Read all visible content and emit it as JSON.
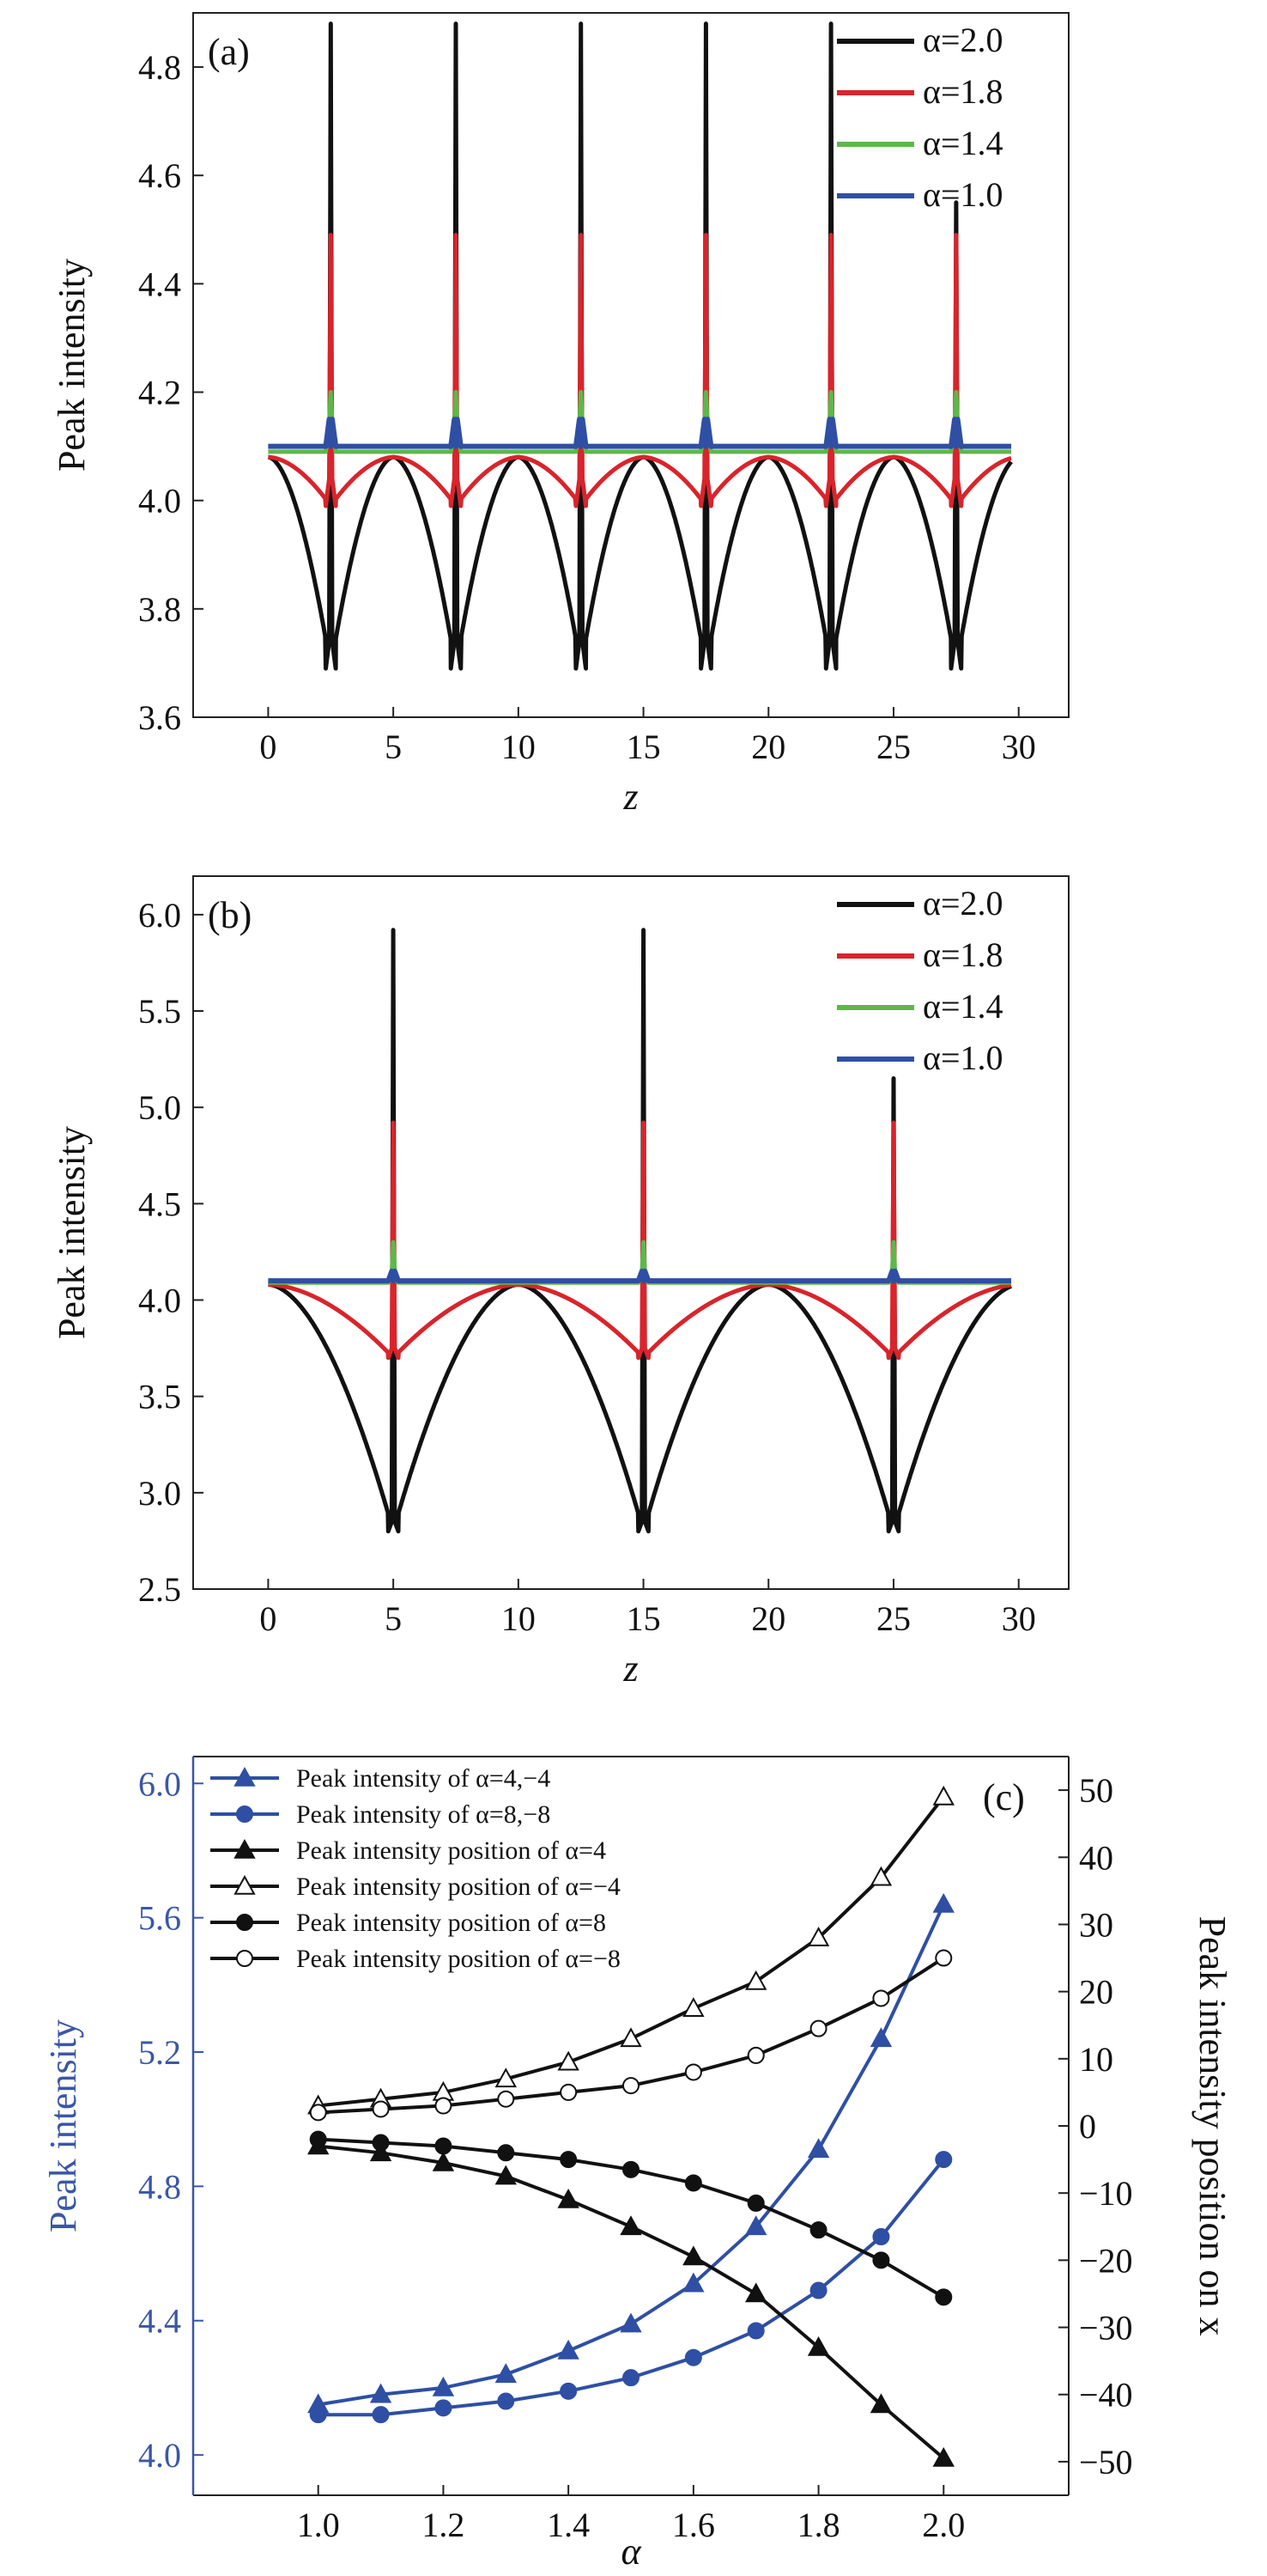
{
  "colors": {
    "black": "#111111",
    "red": "#d9242b",
    "green": "#5cb84a",
    "blue": "#2e4fa3",
    "left_axis_c": "#3a57a6"
  },
  "chart_data": [
    {
      "type": "line",
      "panel_label": "(a)",
      "xlabel": "z",
      "ylabel": "Peak intensity",
      "xlim": [
        -3,
        32
      ],
      "ylim": [
        3.6,
        4.9
      ],
      "xticks": [
        "0",
        "5",
        "10",
        "15",
        "20",
        "25",
        "30"
      ],
      "yticks": [
        "3.6",
        "3.8",
        "4.0",
        "4.2",
        "4.4",
        "4.6",
        "4.8"
      ],
      "xtick_values": [
        0,
        5,
        10,
        15,
        20,
        25,
        30
      ],
      "ytick_values": [
        3.6,
        3.8,
        4.0,
        4.2,
        4.4,
        4.6,
        4.8
      ],
      "legend": {
        "position": "top-right"
      },
      "period": 5,
      "first_peak": 2.5,
      "x_end": 29.7,
      "series": [
        {
          "name": "α=2.0",
          "color": "#111111",
          "base": 4.08,
          "dip": 3.69,
          "peak": 4.88,
          "last_peak": 4.55
        },
        {
          "name": "α=1.8",
          "color": "#d9242b",
          "base": 4.08,
          "dip": 3.99,
          "peak": 4.49,
          "last_peak": 4.49
        },
        {
          "name": "α=1.4",
          "color": "#5cb84a",
          "base": 4.09,
          "dip": 4.09,
          "peak": 4.2,
          "last_peak": 4.2
        },
        {
          "name": "α=1.0",
          "color": "#2e4fa3",
          "base": 4.1,
          "dip": 4.1,
          "peak": 4.1,
          "last_peak": 4.1
        }
      ]
    },
    {
      "type": "line",
      "panel_label": "(b)",
      "xlabel": "z",
      "ylabel": "Peak intensity",
      "xlim": [
        -3,
        32
      ],
      "ylim": [
        2.5,
        6.2
      ],
      "xticks": [
        "0",
        "5",
        "10",
        "15",
        "20",
        "25",
        "30"
      ],
      "yticks": [
        "2.5",
        "3.0",
        "3.5",
        "4.0",
        "4.5",
        "5.0",
        "5.5",
        "6.0"
      ],
      "xtick_values": [
        0,
        5,
        10,
        15,
        20,
        25,
        30
      ],
      "ytick_values": [
        2.5,
        3.0,
        3.5,
        4.0,
        4.5,
        5.0,
        5.5,
        6.0
      ],
      "legend": {
        "position": "top-right"
      },
      "period": 10,
      "first_peak": 5,
      "x_end": 29.7,
      "series": [
        {
          "name": "α=2.0",
          "color": "#111111",
          "base": 4.08,
          "dip": 2.8,
          "peak": 5.92,
          "last_peak": 5.15
        },
        {
          "name": "α=1.8",
          "color": "#d9242b",
          "base": 4.08,
          "dip": 3.7,
          "peak": 4.92,
          "last_peak": 4.92
        },
        {
          "name": "α=1.4",
          "color": "#5cb84a",
          "base": 4.09,
          "dip": 4.09,
          "peak": 4.3,
          "last_peak": 4.3
        },
        {
          "name": "α=1.0",
          "color": "#2e4fa3",
          "base": 4.1,
          "dip": 4.1,
          "peak": 4.1,
          "last_peak": 4.1
        }
      ]
    },
    {
      "type": "line",
      "panel_label": "(c)",
      "xlabel": "α",
      "ylabel": "Peak intensity",
      "y2label": "Peak intensity position on x",
      "xlim": [
        0.8,
        2.2
      ],
      "ylim": [
        3.88,
        6.08
      ],
      "y2lim": [
        -55,
        55
      ],
      "xticks": [
        "1.0",
        "1.2",
        "1.4",
        "1.6",
        "1.8",
        "2.0"
      ],
      "xtick_values": [
        1.0,
        1.2,
        1.4,
        1.6,
        1.8,
        2.0
      ],
      "yticks": [
        "4.0",
        "4.4",
        "4.8",
        "5.2",
        "5.6",
        "6.0"
      ],
      "ytick_values": [
        4.0,
        4.4,
        4.8,
        5.2,
        5.6,
        6.0
      ],
      "y2ticks": [
        "−50",
        "−40",
        "−30",
        "−20",
        "−10",
        "0",
        "10",
        "20",
        "30",
        "40",
        "50"
      ],
      "y2tick_values": [
        -50,
        -40,
        -30,
        -20,
        -10,
        0,
        10,
        20,
        30,
        40,
        50
      ],
      "legend": {
        "position": "top-left"
      },
      "x": [
        1.0,
        1.1,
        1.2,
        1.3,
        1.4,
        1.5,
        1.6,
        1.7,
        1.8,
        1.9,
        2.0
      ],
      "series": [
        {
          "name": "Peak intensity of α=4,−4",
          "axis": "left",
          "color": "#2e4fa3",
          "marker": "triangle-filled",
          "values": [
            4.15,
            4.18,
            4.2,
            4.24,
            4.31,
            4.39,
            4.51,
            4.68,
            4.91,
            5.24,
            5.64
          ]
        },
        {
          "name": "Peak intensity of α=8,−8",
          "axis": "left",
          "color": "#2e4fa3",
          "marker": "circle-filled",
          "values": [
            4.12,
            4.12,
            4.14,
            4.16,
            4.19,
            4.23,
            4.29,
            4.37,
            4.49,
            4.65,
            4.88
          ]
        },
        {
          "name": "Peak intensity position of α=4",
          "axis": "right",
          "color": "#111111",
          "marker": "triangle-filled",
          "values": [
            -3.0,
            -4.0,
            -5.5,
            -7.5,
            -11.0,
            -15.0,
            -19.5,
            -25.0,
            -33.0,
            -41.5,
            -49.5
          ]
        },
        {
          "name": "Peak intensity position of α=−4",
          "axis": "right",
          "color": "#111111",
          "marker": "triangle-open",
          "values": [
            3.0,
            4.0,
            5.0,
            7.0,
            9.5,
            13.0,
            17.5,
            21.5,
            28.0,
            37.0,
            49.0
          ]
        },
        {
          "name": "Peak intensity position of α=8",
          "axis": "right",
          "color": "#111111",
          "marker": "circle-filled",
          "values": [
            -2.0,
            -2.5,
            -3.0,
            -4.0,
            -5.0,
            -6.5,
            -8.5,
            -11.5,
            -15.5,
            -20.0,
            -25.5
          ]
        },
        {
          "name": "Peak intensity position of α=−8",
          "axis": "right",
          "color": "#111111",
          "marker": "circle-open",
          "values": [
            2.0,
            2.5,
            3.0,
            4.0,
            5.0,
            6.0,
            8.0,
            10.5,
            14.5,
            19.0,
            25.0
          ]
        }
      ]
    }
  ]
}
